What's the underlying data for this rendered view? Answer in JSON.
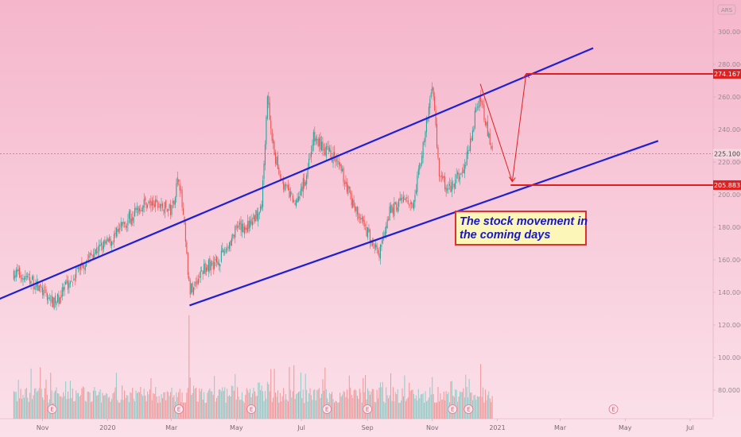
{
  "currency": "ARS",
  "annotation": {
    "line1": "The stock movement in",
    "line2": "the coming days"
  },
  "colors": {
    "up": "#26a69a",
    "down": "#ef5350",
    "channel": "#1f1fd6",
    "target": "#e02020",
    "background_top": "#f5b6cb",
    "background_bottom": "#fbe1ea"
  },
  "chart_data": {
    "type": "candlestick",
    "title": "",
    "currency_label": "ARS",
    "price_axis": {
      "min": 60,
      "max": 320,
      "ticks": [
        "300.000",
        "280.000",
        "260.000",
        "240.000",
        "220.000",
        "200.000",
        "180.000",
        "160.000",
        "140.000",
        "120.000",
        "100.000",
        "80.000"
      ]
    },
    "time_axis": {
      "labels": [
        "Nov",
        "2020",
        "Mar",
        "May",
        "Jul",
        "Sep",
        "Nov",
        "2021",
        "Mar",
        "May",
        "Jul"
      ]
    },
    "price_path": [
      [
        "2019-10-05",
        152
      ],
      [
        "2019-10-20",
        148
      ],
      [
        "2019-11-05",
        138
      ],
      [
        "2019-11-12",
        133
      ],
      [
        "2019-11-20",
        140
      ],
      [
        "2019-12-05",
        155
      ],
      [
        "2019-12-20",
        165
      ],
      [
        "2020-01-05",
        172
      ],
      [
        "2020-01-20",
        185
      ],
      [
        "2020-02-05",
        195
      ],
      [
        "2020-02-20",
        193
      ],
      [
        "2020-03-01",
        190
      ],
      [
        "2020-03-08",
        212
      ],
      [
        "2020-03-13",
        180
      ],
      [
        "2020-03-18",
        140
      ],
      [
        "2020-04-01",
        155
      ],
      [
        "2020-04-15",
        160
      ],
      [
        "2020-05-01",
        178
      ],
      [
        "2020-05-15",
        182
      ],
      [
        "2020-05-25",
        195
      ],
      [
        "2020-05-30",
        262
      ],
      [
        "2020-06-05",
        225
      ],
      [
        "2020-06-15",
        205
      ],
      [
        "2020-06-25",
        195
      ],
      [
        "2020-07-05",
        210
      ],
      [
        "2020-07-12",
        235
      ],
      [
        "2020-07-20",
        230
      ],
      [
        "2020-08-01",
        222
      ],
      [
        "2020-08-10",
        210
      ],
      [
        "2020-08-20",
        192
      ],
      [
        "2020-09-05",
        172
      ],
      [
        "2020-09-12",
        162
      ],
      [
        "2020-09-20",
        188
      ],
      [
        "2020-10-05",
        198
      ],
      [
        "2020-10-12",
        190
      ],
      [
        "2020-10-25",
        235
      ],
      [
        "2020-11-01",
        270
      ],
      [
        "2020-11-07",
        215
      ],
      [
        "2020-11-15",
        202
      ],
      [
        "2020-11-25",
        210
      ],
      [
        "2020-12-01",
        215
      ],
      [
        "2020-12-10",
        245
      ],
      [
        "2020-12-16",
        262
      ],
      [
        "2020-12-22",
        240
      ],
      [
        "2020-12-28",
        225.1
      ]
    ],
    "volume_spikes": [
      [
        "2020-03-18",
        126
      ],
      [
        "2020-05-30",
        85
      ],
      [
        "2020-07-05",
        90
      ],
      [
        "2020-09-15",
        85
      ],
      [
        "2020-11-01",
        88
      ],
      [
        "2020-12-16",
        96
      ]
    ],
    "earnings_markers": [
      "2019-11-10",
      "2020-03-08",
      "2020-05-15",
      "2020-07-25",
      "2020-09-01",
      "2020-11-20",
      "2020-12-05",
      "2021-04-20"
    ],
    "current_price": "225.100",
    "channel": {
      "upper": [
        [
          "2019-08-20",
          127
        ],
        [
          "2021-04-01",
          290
        ]
      ],
      "lower": [
        [
          "2020-03-18",
          132
        ],
        [
          "2021-06-01",
          233
        ]
      ]
    },
    "projection": {
      "points": [
        [
          "2020-12-16",
          268
        ],
        [
          "2021-01-15",
          208
        ],
        [
          "2021-01-28",
          274.167
        ]
      ]
    },
    "levels": [
      {
        "label": "274.167",
        "value": 274.167
      },
      {
        "label": "205.883",
        "value": 205.883
      }
    ]
  }
}
